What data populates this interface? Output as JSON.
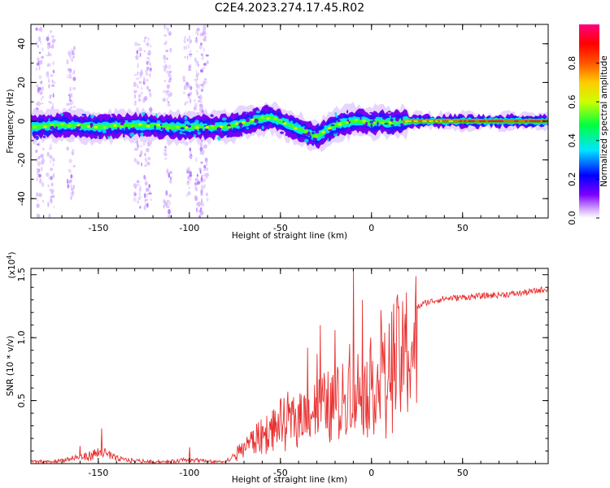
{
  "chart_data": [
    {
      "type": "heatmap",
      "title": "C2E4.2023.274.17.45.R02",
      "xlabel": "Height of straight line (km)",
      "ylabel": "Frequency (Hz)",
      "xlim": [
        -187,
        97
      ],
      "ylim": [
        -50,
        50
      ],
      "x_ticks": [
        -150,
        -100,
        -50,
        0,
        50
      ],
      "y_ticks": [
        -40,
        -20,
        0,
        20,
        40
      ],
      "colorbar": {
        "label": "Normalized spectral amplitude",
        "range": [
          0,
          1
        ],
        "ticks": [
          "0.0",
          "0.2",
          "0.4",
          "0.6",
          "0.8"
        ],
        "colors": [
          "#ffffff",
          "#7d00ff",
          "#0000ff",
          "#00e5ff",
          "#00ff00",
          "#ffff00",
          "#ff7f00",
          "#ff0000",
          "#ff0080"
        ]
      },
      "ridge": {
        "x": [
          -187,
          -170,
          -150,
          -130,
          -110,
          -95,
          -80,
          -70,
          -62,
          -55,
          -45,
          -40,
          -35,
          -30,
          -25,
          -20,
          -15,
          -10,
          -5,
          0,
          5,
          10,
          20,
          40,
          60,
          80,
          97
        ],
        "y": [
          -3,
          -2,
          -3,
          -2,
          -3,
          -3,
          -3,
          -1,
          1,
          2,
          -2,
          -4,
          -6,
          -8,
          -5,
          -2,
          -1,
          0,
          0,
          -1,
          0,
          -1,
          0,
          0,
          0,
          0,
          0
        ]
      },
      "noise_columns": [
        {
          "x": -182,
          "y_span": [
            -50,
            50
          ]
        },
        {
          "x": -176,
          "y_span": [
            -50,
            50
          ]
        },
        {
          "x": -165,
          "y_span": [
            -40,
            40
          ]
        },
        {
          "x": -128,
          "y_span": [
            -50,
            40
          ]
        },
        {
          "x": -123,
          "y_span": [
            -45,
            45
          ]
        },
        {
          "x": -112,
          "y_span": [
            -50,
            50
          ]
        },
        {
          "x": -101,
          "y_span": [
            -40,
            45
          ]
        },
        {
          "x": -95,
          "y_span": [
            -50,
            50
          ]
        },
        {
          "x": -92,
          "y_span": [
            -50,
            50
          ]
        }
      ]
    },
    {
      "type": "line",
      "xlabel": "Height of straight line (km)",
      "ylabel": "SNR (10 * v/v)",
      "y_multiplier": "(x10",
      "y_multiplier_exp": "4",
      "y_multiplier_close": ")",
      "xlim": [
        -187,
        97
      ],
      "ylim": [
        0,
        1.55
      ],
      "x_ticks": [
        -150,
        -100,
        -50,
        0,
        50
      ],
      "y_ticks": [
        "0.5",
        "1.0",
        "1.5"
      ],
      "series": [
        {
          "color": "#e83030",
          "envelope": {
            "x": [
              -187,
              -175,
              -165,
              -155,
              -148,
              -140,
              -130,
              -120,
              -110,
              -100,
              -90,
              -80,
              -75,
              -70,
              -60,
              -50,
              -40,
              -30,
              -20,
              -15,
              -10,
              -5,
              0,
              5,
              10,
              15,
              20,
              25,
              30,
              40,
              50,
              60,
              70,
              80,
              90,
              97
            ],
            "y": [
              0.02,
              0.02,
              0.05,
              0.08,
              0.12,
              0.05,
              0.03,
              0.02,
              0.02,
              0.05,
              0.02,
              0.02,
              0.08,
              0.18,
              0.3,
              0.4,
              0.5,
              0.58,
              0.62,
              0.68,
              0.78,
              0.72,
              0.82,
              0.95,
              1.02,
              1.1,
              1.18,
              1.24,
              1.28,
              1.31,
              1.32,
              1.33,
              1.34,
              1.35,
              1.37,
              1.39
            ]
          },
          "spikes": [
            {
              "x": -148,
              "y": 0.28
            },
            {
              "x": -160,
              "y": 0.14
            },
            {
              "x": -100,
              "y": 0.13
            },
            {
              "x": -50,
              "y": 0.5
            },
            {
              "x": -35,
              "y": 0.92
            },
            {
              "x": -30,
              "y": 0.87
            },
            {
              "x": -28,
              "y": 1.1
            },
            {
              "x": -20,
              "y": 1.06
            },
            {
              "x": -12,
              "y": 0.95
            },
            {
              "x": -10,
              "y": 1.55
            },
            {
              "x": -5,
              "y": 1.3
            },
            {
              "x": 5,
              "y": 1.22
            },
            {
              "x": 8,
              "y": 0.2
            },
            {
              "x": 15,
              "y": 1.25
            }
          ]
        }
      ]
    }
  ]
}
